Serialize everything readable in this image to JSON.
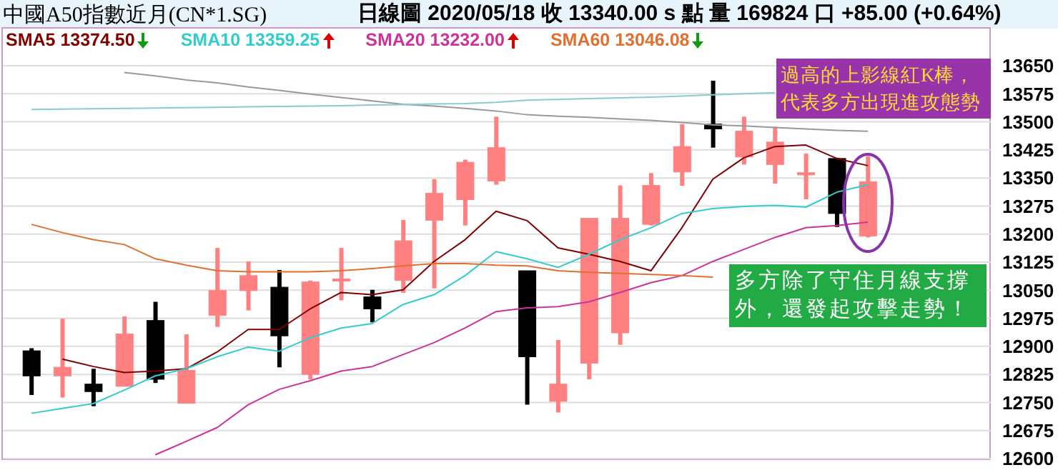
{
  "chart_data": {
    "type": "candlestick",
    "title": "中國A50指數近月(CN*1.SG)",
    "subtitle": "日線圖  2020/05/18  收 13340.00 s 點  量 169824 口  +85.00 (+0.64%)",
    "categories": [
      null,
      null,
      null,
      null,
      null,
      null,
      null,
      null,
      null,
      null,
      null,
      null,
      null,
      null,
      null,
      null,
      null,
      null,
      null,
      null,
      null,
      null,
      null,
      null,
      null,
      null,
      null,
      null
    ],
    "ohlc": [
      [
        12888,
        12895,
        12770,
        12821
      ],
      [
        12821,
        12974,
        12763,
        12844
      ],
      [
        12799,
        12840,
        12740,
        12779
      ],
      [
        12793,
        12980,
        12793,
        12933
      ],
      [
        12969,
        13019,
        12802,
        12812
      ],
      [
        12748,
        12932,
        12748,
        12836
      ],
      [
        12983,
        13163,
        12952,
        13049
      ],
      [
        13049,
        13127,
        12996,
        13089
      ],
      [
        13058,
        13104,
        12844,
        12928
      ],
      [
        12825,
        13076,
        12812,
        13072
      ],
      [
        13075,
        13163,
        13023,
        13080
      ],
      [
        13032,
        13051,
        12964,
        13000
      ],
      [
        13076,
        13238,
        13043,
        13182
      ],
      [
        13237,
        13347,
        13055,
        13309
      ],
      [
        13292,
        13399,
        13223,
        13392
      ],
      [
        13342,
        13514,
        13332,
        13431
      ],
      [
        13102,
        13102,
        12744,
        12872
      ],
      [
        12753,
        12917,
        12723,
        12799
      ],
      [
        12855,
        13242,
        12812,
        13242
      ],
      [
        12936,
        13330,
        12904,
        13242
      ],
      [
        13226,
        13363,
        13223,
        13330
      ],
      [
        13366,
        13494,
        13329,
        13434
      ],
      [
        13494,
        13610,
        13431,
        13481
      ],
      [
        13406,
        13514,
        13386,
        13475
      ],
      [
        13386,
        13487,
        13335,
        13446
      ],
      [
        13362,
        13415,
        13293,
        13364
      ],
      [
        13402,
        13404,
        13219,
        13255
      ],
      [
        13195,
        13408,
        13191,
        13340
      ]
    ],
    "colors": [
      "#000000",
      "#ff8080",
      "#000000",
      "#ff8080",
      "#000000",
      "#ff8080",
      "#ff8080",
      "#ff8080",
      "#000000",
      "#ff8080",
      "#ff8080",
      "#000000",
      "#ff8080",
      "#ff8080",
      "#ff8080",
      "#ff8080",
      "#000000",
      "#ff8080",
      "#ff8080",
      "#ff8080",
      "#ff8080",
      "#ff8080",
      "#000000",
      "#ff8080",
      "#ff8080",
      "#ff8080",
      "#000000",
      "#ff8080"
    ],
    "series": [
      {
        "name": "SMA5 13374.50",
        "type": "line",
        "color": "#800000",
        "values": [
          null,
          12866,
          12846,
          12830,
          12834,
          12840,
          12885,
          12945,
          12945,
          13000,
          13044,
          13038,
          13051,
          13127,
          13185,
          13261,
          13236,
          13163,
          13146,
          13127,
          13102,
          13217,
          13347,
          13404,
          13434,
          13438,
          13402,
          13383
        ]
      },
      {
        "name": "SMA10 13359.25",
        "type": "line",
        "color": "#33cccc",
        "values": [
          12721,
          12734,
          12747,
          12783,
          12821,
          12840,
          12872,
          12898,
          12887,
          12923,
          12949,
          12961,
          13012,
          13038,
          13089,
          13153,
          13134,
          13111,
          13146,
          13185,
          13217,
          13255,
          13268,
          13274,
          13277,
          13272,
          13312,
          13332
        ]
      },
      {
        "name": "SMA20 13232.00",
        "type": "line",
        "color": "#cc3399",
        "values": [
          null,
          null,
          null,
          null,
          12610,
          12646,
          12683,
          12744,
          12785,
          12808,
          12834,
          12846,
          12878,
          12910,
          12949,
          12993,
          13003,
          13006,
          13019,
          13044,
          13070,
          13089,
          13127,
          13159,
          13191,
          13217,
          13223,
          13232
        ]
      },
      {
        "name": "SMA60 13046.08",
        "type": "line",
        "color": "#e07030",
        "values": [
          13226,
          13204,
          13185,
          13172,
          13134,
          13117,
          13102,
          13099,
          13099,
          13099,
          13102,
          13108,
          13115,
          13121,
          13121,
          13117,
          13115,
          13102,
          13098,
          13095,
          13092,
          13089,
          13085,
          null,
          null,
          null,
          null,
          null
        ]
      },
      {
        "type": "line",
        "color": "#999999",
        "values": [
          null,
          null,
          null,
          13632,
          13623,
          13612,
          13604,
          13593,
          13584,
          13574,
          13565,
          13556,
          13547,
          13542,
          13536,
          13529,
          13519,
          13515,
          13512,
          13508,
          13504,
          13498,
          13492,
          13489,
          13485,
          13481,
          13477,
          13475
        ]
      },
      {
        "type": "line",
        "color": "#88cccc",
        "values": [
          13533,
          13534,
          13535,
          13536,
          13537,
          13538,
          13539,
          13540,
          13541,
          13542,
          13543,
          13545,
          13546,
          13548,
          13549,
          13552,
          13558,
          13560,
          13562,
          13564,
          13566,
          13569,
          13572,
          13575,
          13578,
          null,
          null,
          null
        ]
      }
    ],
    "ylim": [
      12600,
      13650
    ],
    "yticks": [
      12600,
      12675,
      12750,
      12825,
      12900,
      12975,
      13050,
      13125,
      13200,
      13275,
      13350,
      13425,
      13500,
      13575,
      13650
    ],
    "grid": "y",
    "legend": "top left",
    "tick_labels": "y",
    "line_style": "solid",
    "marker": "none",
    "annotations": [
      "過高的上影線紅K棒，代表多方出現進攻態勢",
      "多方除了守住月線支撐外，還發起攻擊走勢！"
    ]
  }
}
